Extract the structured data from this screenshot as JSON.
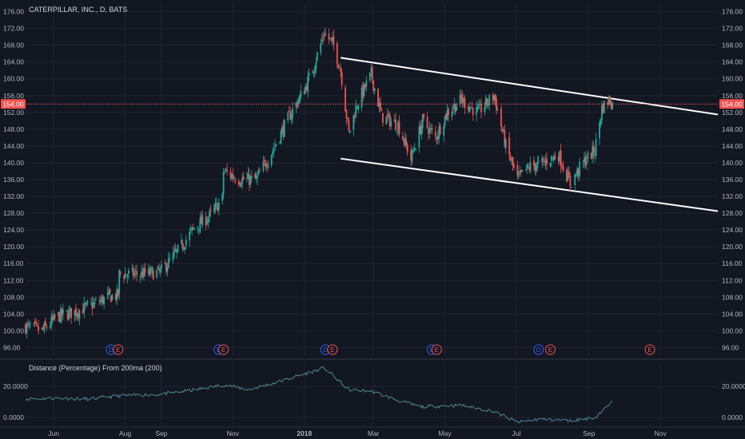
{
  "colors": {
    "background": "#131722",
    "grid": "#1f2430",
    "up": "#26a69a",
    "down": "#ef5350",
    "trendline": "#ffffff",
    "price_line": "#ef5350",
    "indicator_line": "#4a8a93",
    "dividend_event": "#2962ff",
    "earnings_event": "#ef5350"
  },
  "chart_data": [
    {
      "type": "candlestick",
      "title": "CATERPILLAR, INC., D, BATS",
      "ylim": [
        94,
        178
      ],
      "y_ticks": [
        96,
        100,
        104,
        108,
        112,
        116,
        120,
        124,
        128,
        132,
        136,
        140,
        144,
        148,
        152,
        156,
        160,
        164,
        168,
        172,
        176
      ],
      "y_tick_labels_left": [
        "96.00",
        "100.00",
        "104.00",
        "108.00",
        "112.00",
        "116.00",
        "120.00",
        "124.00",
        "128.00",
        "132.00",
        "136.00",
        "140.00",
        "144.00",
        "148.00",
        "152.00",
        "156.00",
        "160.00",
        "164.00",
        "168.00",
        "172.00",
        "176.00"
      ],
      "y_tick_labels_right": [
        "96.00",
        "100.00",
        "104.00",
        "108.00",
        "112.00",
        "116.00",
        "120.00",
        "124.00",
        "128.00",
        "132.00",
        "136.00",
        "140.00",
        "144.00",
        "148.00",
        "152.00",
        "156.00",
        "160.00",
        "164.00",
        "168.00",
        "172.00",
        "176.00"
      ],
      "x_range": [
        "2017-05-08",
        "2018-12-20"
      ],
      "x_ticks": [
        {
          "date": "2017-06-01",
          "label": "Jun"
        },
        {
          "date": "2017-08-01",
          "label": "Aug"
        },
        {
          "date": "2017-09-01",
          "label": "Sep"
        },
        {
          "date": "2017-11-01",
          "label": "Nov"
        },
        {
          "date": "2018-01-01",
          "label": "2018"
        },
        {
          "date": "2018-03-01",
          "label": "Mar"
        },
        {
          "date": "2018-05-01",
          "label": "May"
        },
        {
          "date": "2018-07-01",
          "label": "Jul"
        },
        {
          "date": "2018-09-01",
          "label": "Sep"
        },
        {
          "date": "2018-11-01",
          "label": "Nov"
        }
      ],
      "close_anchors": [
        [
          "2017-05-08",
          101
        ],
        [
          "2017-05-22",
          100
        ],
        [
          "2017-06-05",
          103.5
        ],
        [
          "2017-06-19",
          104.5
        ],
        [
          "2017-07-03",
          106
        ],
        [
          "2017-07-17",
          108
        ],
        [
          "2017-07-26",
          108.5
        ],
        [
          "2017-07-27",
          113.5
        ],
        [
          "2017-08-14",
          113.5
        ],
        [
          "2017-08-31",
          114
        ],
        [
          "2017-09-15",
          119
        ],
        [
          "2017-09-29",
          124.5
        ],
        [
          "2017-10-13",
          127.5
        ],
        [
          "2017-10-23",
          131.5
        ],
        [
          "2017-10-24",
          138
        ],
        [
          "2017-11-07",
          136
        ],
        [
          "2017-11-21",
          136
        ],
        [
          "2017-12-05",
          143
        ],
        [
          "2017-12-19",
          151
        ],
        [
          "2018-01-02",
          158
        ],
        [
          "2018-01-09",
          163
        ],
        [
          "2018-01-18",
          171
        ],
        [
          "2018-01-26",
          168
        ],
        [
          "2018-02-01",
          162
        ],
        [
          "2018-02-08",
          147
        ],
        [
          "2018-02-15",
          154
        ],
        [
          "2018-02-27",
          161
        ],
        [
          "2018-03-08",
          151
        ],
        [
          "2018-03-22",
          149
        ],
        [
          "2018-04-02",
          141
        ],
        [
          "2018-04-12",
          150
        ],
        [
          "2018-04-23",
          146
        ],
        [
          "2018-05-03",
          152
        ],
        [
          "2018-05-15",
          155
        ],
        [
          "2018-05-29",
          152
        ],
        [
          "2018-06-12",
          156
        ],
        [
          "2018-06-22",
          144
        ],
        [
          "2018-07-02",
          136
        ],
        [
          "2018-07-12",
          139
        ],
        [
          "2018-07-24",
          140
        ],
        [
          "2018-08-06",
          142
        ],
        [
          "2018-08-16",
          135
        ],
        [
          "2018-08-27",
          140
        ],
        [
          "2018-09-06",
          143
        ],
        [
          "2018-09-12",
          153
        ],
        [
          "2018-09-18",
          155
        ],
        [
          "2018-09-21",
          154
        ]
      ],
      "last_price": 154.0,
      "last_price_label": "154.00",
      "trendlines": [
        {
          "name": "upper-channel",
          "start": [
            "2018-02-01",
            165
          ],
          "end": [
            "2018-12-20",
            151.5
          ]
        },
        {
          "name": "lower-channel",
          "start": [
            "2018-02-01",
            141
          ],
          "end": [
            "2018-12-20",
            128.5
          ]
        }
      ],
      "events": [
        {
          "type": "D",
          "date": "2017-07-20"
        },
        {
          "type": "E",
          "date": "2017-07-26"
        },
        {
          "type": "D",
          "date": "2017-10-20"
        },
        {
          "type": "E",
          "date": "2017-10-24"
        },
        {
          "type": "D",
          "date": "2018-01-19"
        },
        {
          "type": "E",
          "date": "2018-01-25"
        },
        {
          "type": "D",
          "date": "2018-04-20"
        },
        {
          "type": "E",
          "date": "2018-04-24"
        },
        {
          "type": "D",
          "date": "2018-07-20"
        },
        {
          "type": "E",
          "date": "2018-07-30"
        },
        {
          "type": "E",
          "date": "2018-10-23"
        }
      ]
    },
    {
      "type": "line",
      "title": "Distance (Percentage) From 200ma (200)",
      "ylim": [
        -5,
        36
      ],
      "y_ticks": [
        0,
        20
      ],
      "y_tick_labels_left": [
        "0.0000",
        "20.0000"
      ],
      "y_tick_labels_right": [
        "0.0000",
        "20.0000"
      ],
      "series": [
        {
          "values": [
            [
              "2017-05-08",
              12
            ],
            [
              "2017-06-01",
              12.5
            ],
            [
              "2017-07-01",
              12
            ],
            [
              "2017-07-27",
              14
            ],
            [
              "2017-09-01",
              15
            ],
            [
              "2017-10-01",
              18
            ],
            [
              "2017-10-24",
              21
            ],
            [
              "2017-11-15",
              18
            ],
            [
              "2017-12-15",
              24
            ],
            [
              "2018-01-18",
              32
            ],
            [
              "2018-02-08",
              18
            ],
            [
              "2018-02-27",
              17
            ],
            [
              "2018-03-22",
              11
            ],
            [
              "2018-04-10",
              7
            ],
            [
              "2018-05-15",
              8
            ],
            [
              "2018-06-12",
              4
            ],
            [
              "2018-07-02",
              -3
            ],
            [
              "2018-07-20",
              -1
            ],
            [
              "2018-08-16",
              -2
            ],
            [
              "2018-09-06",
              0
            ],
            [
              "2018-09-18",
              8
            ],
            [
              "2018-09-21",
              10
            ]
          ]
        }
      ]
    }
  ]
}
